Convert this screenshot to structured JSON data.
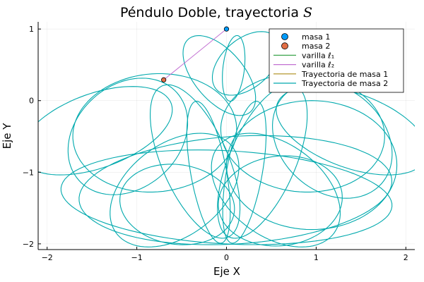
{
  "chart_data": {
    "type": "line",
    "title": "Péndulo Doble, trayectoria",
    "title_math": "S",
    "xlabel": "Eje X",
    "ylabel": "Eje Y",
    "xlim": [
      -2.1,
      2.1
    ],
    "ylim": [
      -2.08,
      1.1
    ],
    "xticks": [
      -2,
      -1,
      0,
      1,
      2
    ],
    "xtick_labels": [
      "−2",
      "−1",
      "0",
      "1",
      "2"
    ],
    "yticks": [
      -2,
      -1,
      0,
      1
    ],
    "ytick_labels": [
      "−2",
      "−1",
      "0",
      "1"
    ],
    "grid": true,
    "legend_position": "top-right",
    "series": [
      {
        "name": "masa 1",
        "kind": "scatter",
        "color": "#009af9",
        "points": [
          [
            0.0,
            1.0
          ]
        ]
      },
      {
        "name": "masa 2",
        "kind": "scatter",
        "color": "#e26f46",
        "points": [
          [
            -0.7,
            0.29
          ]
        ]
      },
      {
        "name": "varilla ℓ₁",
        "kind": "line",
        "color": "#3da44d",
        "points": [
          [
            0.0,
            1.0
          ],
          [
            0.0,
            1.0
          ]
        ]
      },
      {
        "name": "varilla ℓ₂",
        "kind": "line",
        "color": "#c271d2",
        "points": [
          [
            0.0,
            1.0
          ],
          [
            -0.7,
            0.29
          ]
        ]
      },
      {
        "name": "Trayectoria de masa 1",
        "kind": "line",
        "color": "#ac8d18",
        "points": []
      },
      {
        "name": "Trayectoria de masa 2",
        "kind": "line",
        "color": "#00a9ad",
        "lobes": [
          {
            "cx": -1.45,
            "cy": -0.42,
            "rx": 0.5,
            "ry": 0.92,
            "rot": -62
          },
          {
            "cx": -0.8,
            "cy": -0.45,
            "rx": 0.92,
            "ry": 0.82,
            "rot": 15
          },
          {
            "cx": -0.58,
            "cy": -1.25,
            "rx": 0.58,
            "ry": 0.9,
            "rot": -38
          },
          {
            "cx": -0.35,
            "cy": -0.85,
            "rx": 0.38,
            "ry": 1.12,
            "rot": 18
          },
          {
            "cx": -0.2,
            "cy": -1.0,
            "rx": 0.2,
            "ry": 1.0,
            "rot": 8
          },
          {
            "cx": -0.08,
            "cy": 0.35,
            "rx": 0.3,
            "ry": 0.62,
            "rot": 30
          },
          {
            "cx": 0.08,
            "cy": 0.45,
            "rx": 0.12,
            "ry": 0.46,
            "rot": -5
          },
          {
            "cx": 0.22,
            "cy": 0.52,
            "rx": 0.3,
            "ry": 0.5,
            "rot": -35
          },
          {
            "cx": 0.2,
            "cy": -1.0,
            "rx": 0.2,
            "ry": 1.0,
            "rot": -8
          },
          {
            "cx": 0.4,
            "cy": -0.85,
            "rx": 0.38,
            "ry": 1.12,
            "rot": -18
          },
          {
            "cx": 0.55,
            "cy": -1.25,
            "rx": 0.58,
            "ry": 0.9,
            "rot": 38
          },
          {
            "cx": 0.85,
            "cy": -0.45,
            "rx": 0.92,
            "ry": 0.82,
            "rot": -15
          },
          {
            "cx": 1.4,
            "cy": -0.42,
            "rx": 0.5,
            "ry": 0.92,
            "rot": 62
          },
          {
            "cx": 1.18,
            "cy": -0.55,
            "rx": 0.62,
            "ry": 0.85,
            "rot": 25
          },
          {
            "cx": -1.1,
            "cy": -0.5,
            "rx": 0.62,
            "ry": 0.85,
            "rot": -25
          },
          {
            "cx": 0.0,
            "cy": -1.35,
            "rx": 1.85,
            "ry": 0.65,
            "rot": -4
          },
          {
            "cx": 0.1,
            "cy": -1.25,
            "rx": 1.75,
            "ry": 0.75,
            "rot": 5
          },
          {
            "cx": 0.6,
            "cy": -1.4,
            "rx": 0.7,
            "ry": 0.62,
            "rot": 20
          },
          {
            "cx": -0.55,
            "cy": -1.45,
            "rx": 0.65,
            "ry": 0.55,
            "rot": -20
          },
          {
            "cx": 0.95,
            "cy": -0.9,
            "rx": 0.95,
            "ry": 0.9,
            "rot": 0
          }
        ]
      }
    ]
  }
}
